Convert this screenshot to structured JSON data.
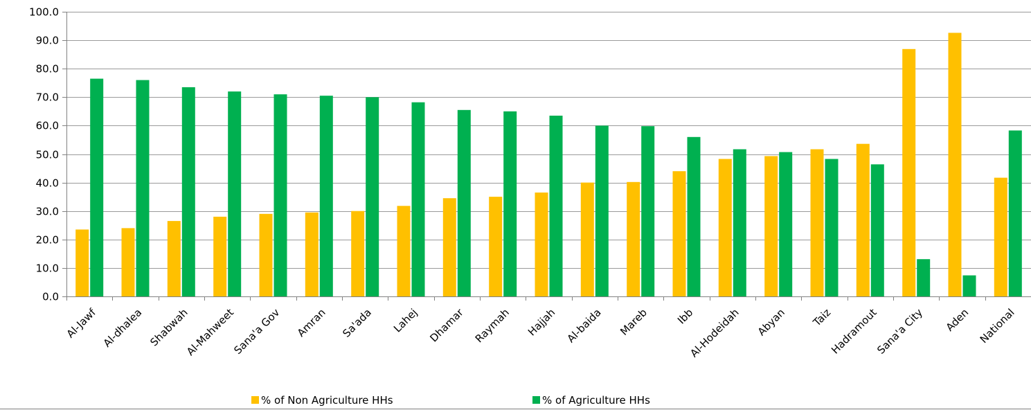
{
  "chart_data": {
    "type": "bar",
    "title": "",
    "xlabel": "",
    "ylabel": "",
    "ylim": [
      0,
      100
    ],
    "yticks": [
      "0.0",
      "10.0",
      "20.0",
      "30.0",
      "40.0",
      "50.0",
      "60.0",
      "70.0",
      "80.0",
      "90.0",
      "100.0"
    ],
    "grid": true,
    "legend_position": "bottom",
    "categories": [
      "Al-Jawf",
      "Al-dhalea",
      "Shabwah",
      "Al-Mahweet",
      "Sana'a Gov",
      "Amran",
      "Sa'ada",
      "Lahej",
      "Dhamar",
      "Raymah",
      "Hajjah",
      "Al-baida",
      "Mareb",
      "Ibb",
      "Al-Hodeidah",
      "Abyan",
      "Taiz",
      "Hadramout",
      "Sana'a City",
      "Aden",
      "National"
    ],
    "series": [
      {
        "name": "% of Non Agriculture HHs",
        "color": "#FFC000",
        "values": [
          23.5,
          24.0,
          26.5,
          28.0,
          29.0,
          29.5,
          30.0,
          31.8,
          34.5,
          35.0,
          36.5,
          40.0,
          40.2,
          44.0,
          48.3,
          49.3,
          51.7,
          53.6,
          86.9,
          92.6,
          41.7
        ]
      },
      {
        "name": "% of Agriculture HHs",
        "color": "#00B050",
        "values": [
          76.5,
          76.0,
          73.5,
          72.0,
          71.0,
          70.5,
          70.0,
          68.2,
          65.5,
          65.0,
          63.5,
          60.0,
          59.8,
          56.0,
          51.7,
          50.7,
          48.3,
          46.4,
          13.1,
          7.4,
          58.3
        ]
      }
    ]
  }
}
